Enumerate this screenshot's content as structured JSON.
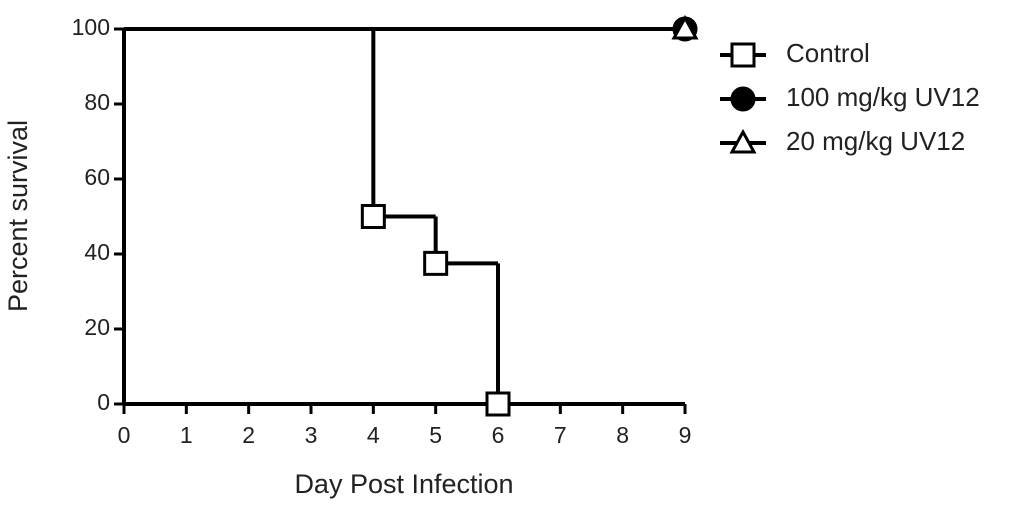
{
  "chart_data": {
    "type": "step",
    "xlabel": "Day Post Infection",
    "ylabel": "Percent survival",
    "xlim": [
      0,
      9
    ],
    "xticks": [
      0,
      1,
      2,
      3,
      4,
      5,
      6,
      7,
      8,
      9
    ],
    "ylim": [
      0,
      100
    ],
    "yticks": [
      0,
      20,
      40,
      60,
      80,
      100
    ],
    "legend": "right",
    "series": [
      {
        "name": "Control",
        "color": "#000000",
        "marker": "square",
        "marker_fill": "#ffffff",
        "x": [
          0,
          4,
          5,
          6
        ],
        "values": [
          100,
          50,
          37.5,
          0
        ]
      },
      {
        "name": "100 mg/kg UV12",
        "color": "#000000",
        "marker": "circle",
        "marker_fill": "#000000",
        "x": [
          0,
          9
        ],
        "values": [
          100,
          100
        ]
      },
      {
        "name": "20 mg/kg UV12",
        "color": "#000000",
        "marker": "triangle",
        "marker_fill": "#ffffff",
        "x": [
          0,
          9
        ],
        "values": [
          100,
          100
        ]
      }
    ]
  }
}
